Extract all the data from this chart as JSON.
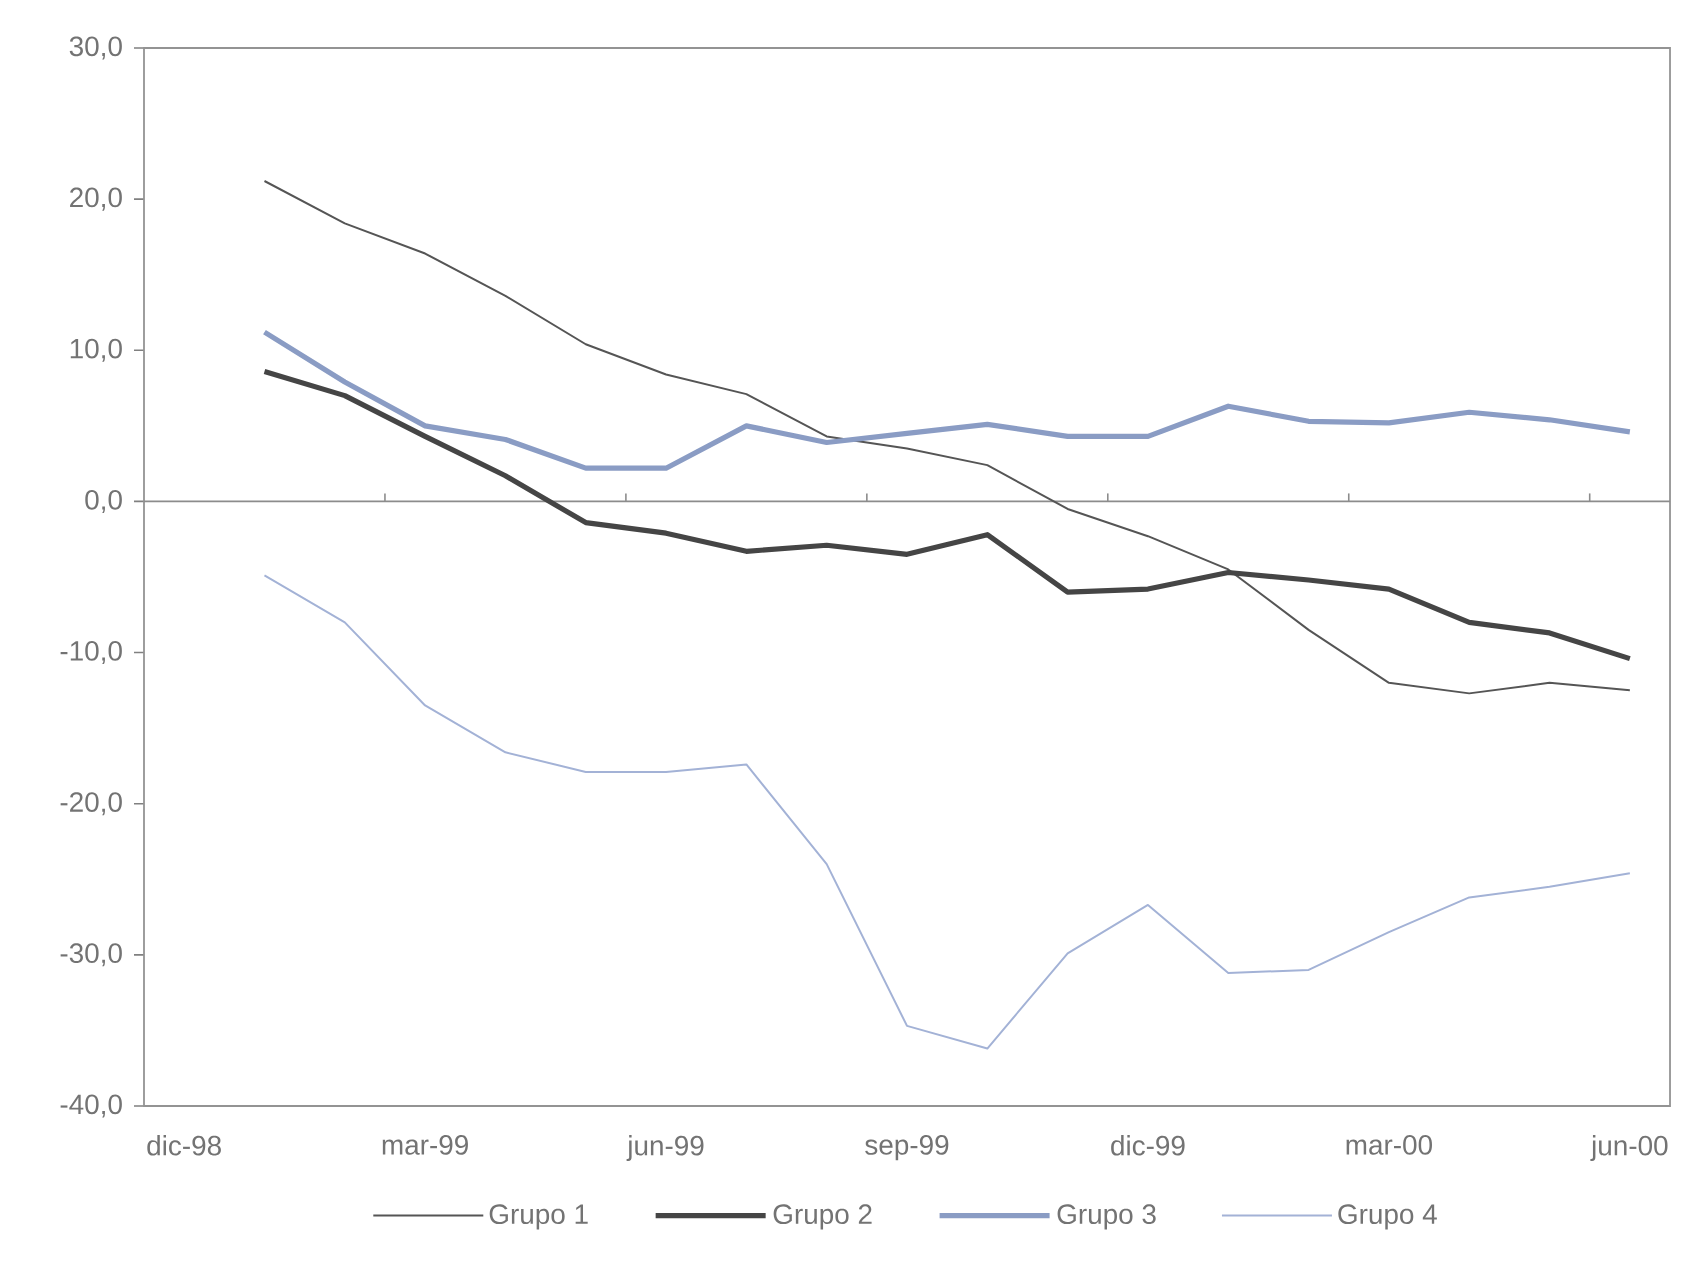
{
  "chart_data": {
    "type": "line",
    "categories": [
      "dic-98",
      null,
      null,
      "mar-99",
      null,
      null,
      "jun-99",
      null,
      null,
      "sep-99",
      null,
      null,
      "dic-99",
      null,
      null,
      "mar-00",
      null,
      null,
      "jun-00"
    ],
    "series": [
      {
        "name": "Grupo 1",
        "color": "#555555",
        "values": [
          null,
          21.2,
          18.4,
          16.4,
          13.6,
          10.4,
          8.4,
          7.1,
          4.3,
          3.5,
          2.4,
          -0.5,
          -2.3,
          -4.5,
          -8.5,
          -12.0,
          -12.7,
          -12.0,
          -12.5
        ]
      },
      {
        "name": "Grupo 2",
        "color": "#454545",
        "values": [
          null,
          8.6,
          7.0,
          4.3,
          1.7,
          -1.4,
          -2.1,
          -3.3,
          -2.9,
          -3.5,
          -2.2,
          -6.0,
          -5.8,
          -4.7,
          -5.2,
          -5.8,
          -8.0,
          -8.7,
          -10.4
        ]
      },
      {
        "name": "Grupo 3",
        "color": "#8a9cc4",
        "values": [
          null,
          11.2,
          7.9,
          5.0,
          4.1,
          2.2,
          2.2,
          5.0,
          3.9,
          4.5,
          5.1,
          4.3,
          4.3,
          6.3,
          5.3,
          5.2,
          5.9,
          5.4,
          4.6
        ]
      },
      {
        "name": "Grupo 4",
        "color": "#a3b2d6",
        "values": [
          null,
          -4.9,
          -8.0,
          -13.5,
          -16.6,
          -17.9,
          -17.9,
          -17.4,
          -24.0,
          -34.7,
          -36.2,
          -29.9,
          -26.7,
          -31.2,
          -31.0,
          -28.5,
          -26.2,
          -25.5,
          -24.6
        ]
      }
    ],
    "ylim": [
      -40,
      30
    ],
    "yticks": [
      {
        "value": -40,
        "label": "-40,0"
      },
      {
        "value": -30,
        "label": "-30,0"
      },
      {
        "value": -20,
        "label": "-20,0"
      },
      {
        "value": -10,
        "label": "-10,0"
      },
      {
        "value": 0,
        "label": "0,0"
      },
      {
        "value": 10,
        "label": "10,0"
      },
      {
        "value": 20,
        "label": "20,0"
      },
      {
        "value": 30,
        "label": "30,0"
      }
    ],
    "ref_lines": [
      {
        "axis": "y",
        "value": 0,
        "color": "#8c8c8c"
      }
    ],
    "legend": "bottom",
    "grid": false,
    "marker": "none",
    "line_style": "solid"
  }
}
